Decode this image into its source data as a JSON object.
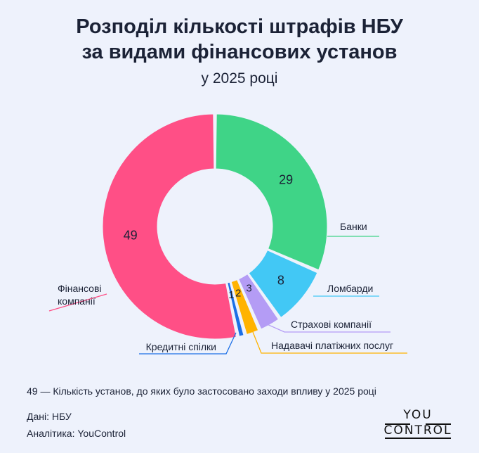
{
  "title_line1": "Розподіл кількості штрафів НБУ",
  "title_line2": "за видами фінансових установ",
  "subtitle": "у 2025 році",
  "note": "49 — Кількість установ, до яких було застосовано заходи впливу у 2025 році",
  "source": "Дані: НБУ",
  "analytics": "Аналітика: YouControl",
  "logo_top": "YOU",
  "logo_bottom": "CONTROL",
  "chart_data": {
    "type": "pie",
    "donut": true,
    "categories": [
      "Банки",
      "Ломбарди",
      "Страхові компанії",
      "Надавачі платіжних послуг",
      "Кредитні спілки",
      "Фінансові компанії"
    ],
    "values": [
      29,
      8,
      3,
      2,
      1,
      49
    ],
    "colors": [
      "#3fd487",
      "#42c8f5",
      "#b49cf5",
      "#ffb300",
      "#1c6fe6",
      "#ff4f86"
    ],
    "legend_placement": "outside labels with leader lines"
  }
}
